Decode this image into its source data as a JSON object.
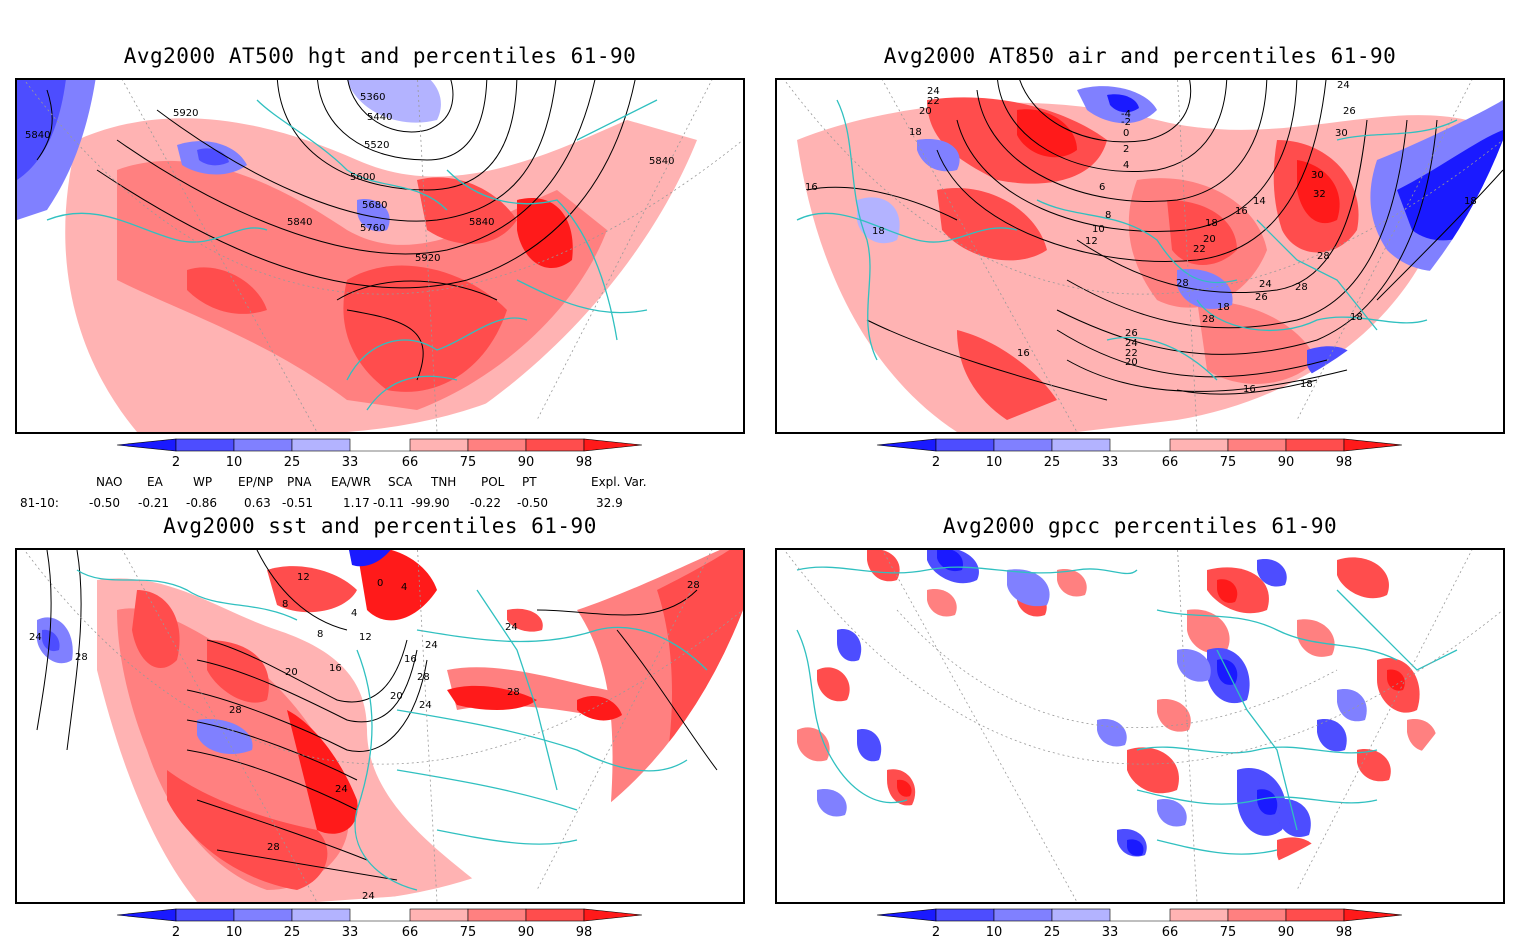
{
  "panels": {
    "p1": {
      "title": "Avg2000 AT500 hgt and percentiles 61-90",
      "contour_labels": [
        "5360",
        "5440",
        "5520",
        "5600",
        "5680",
        "5760",
        "5840",
        "5920",
        "5840",
        "5920",
        "5840",
        "5840"
      ]
    },
    "p2": {
      "title": "Avg2000 AT850 air and percentiles 61-90",
      "contour_labels": [
        "24",
        "22",
        "20",
        "18",
        "18",
        "16",
        "-4",
        "-2",
        "0",
        "2",
        "4",
        "6",
        "8",
        "10",
        "12",
        "14",
        "16",
        "18",
        "20",
        "22",
        "24",
        "26",
        "28",
        "28",
        "28",
        "26",
        "24",
        "22",
        "20",
        "16",
        "16",
        "18",
        "18",
        "18",
        "30",
        "32",
        "30",
        "26",
        "24",
        "28",
        "18"
      ]
    },
    "p3": {
      "title": "Avg2000 sst and percentiles 61-90",
      "contour_labels": [
        "24",
        "28",
        "28",
        "24",
        "20",
        "16",
        "12",
        "8",
        "4",
        "0",
        "4",
        "8",
        "12",
        "16",
        "20",
        "24",
        "28",
        "28",
        "24",
        "28",
        "24",
        "24",
        "28"
      ]
    },
    "p4": {
      "title": "Avg2000 gpcc percentiles 61-90"
    }
  },
  "legend": {
    "ticks": [
      "2",
      "10",
      "25",
      "33",
      "66",
      "75",
      "90",
      "98"
    ],
    "colors": [
      "#1a1aff",
      "#4d4dff",
      "#8080ff",
      "#b3b3ff",
      "#ffb3b3",
      "#ff8080",
      "#ff4d4d",
      "#ff1a1a"
    ]
  },
  "teleconnections": {
    "period": "81-10:",
    "headers": [
      "NAO",
      "EA",
      "WP",
      "EP/NP",
      "PNA",
      "EA/WR",
      "SCA",
      "TNH",
      "POL",
      "PT",
      "Expl. Var."
    ],
    "values": [
      "-0.50",
      "-0.21",
      "-0.86",
      "0.63",
      "-0.51",
      "1.17",
      "-0.11",
      "-99.90",
      "-0.22",
      "-0.50",
      "32.9"
    ]
  }
}
